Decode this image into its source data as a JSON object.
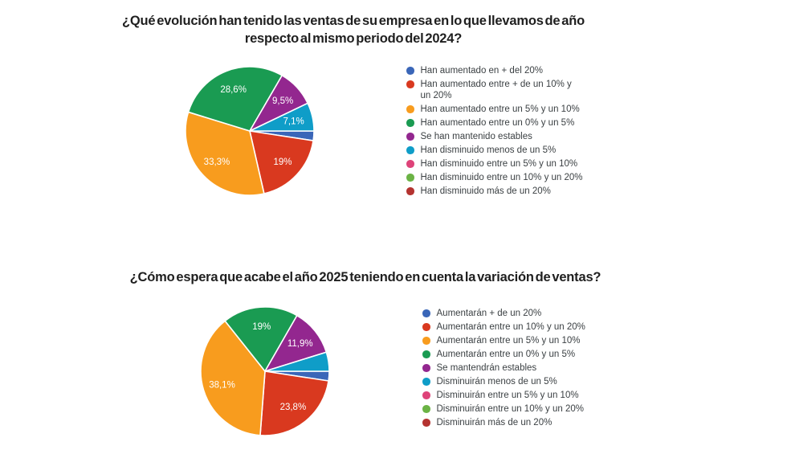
{
  "chart_data": [
    {
      "type": "pie",
      "title": "¿Qué evolución han tenido las ventas de su empresa en lo que llevamos de año respecto al mismo periodo del 2024?",
      "legend_position": "right",
      "start_angle": 90,
      "direction": "clockwise",
      "slices": [
        {
          "label": "Han aumentado en + del 20%",
          "value": 2.4,
          "display": "",
          "color": "#3A66B8"
        },
        {
          "label": "Han aumentado entre + de un 10% y un 20%",
          "value": 19.0,
          "display": "19%",
          "color": "#D9391F"
        },
        {
          "label": "Han aumentado entre un 5% y un 10%",
          "value": 33.3,
          "display": "33,3%",
          "color": "#F89C1E"
        },
        {
          "label": "Han aumentado entre un 0% y un 5%",
          "value": 28.6,
          "display": "28,6%",
          "color": "#1A9B52"
        },
        {
          "label": "Se han mantenido estables",
          "value": 9.5,
          "display": "9,5%",
          "color": "#93278F"
        },
        {
          "label": "Han disminuido menos de un 5%",
          "value": 7.1,
          "display": "7,1%",
          "color": "#0F9DC8"
        },
        {
          "label": "Han disminuido entre un 5% y un 10%",
          "value": 0,
          "display": "",
          "color": "#DE4379"
        },
        {
          "label": "Han disminuido entre un 10% y un 20%",
          "value": 0,
          "display": "",
          "color": "#6BB345"
        },
        {
          "label": "Han disminuido más de un 20%",
          "value": 0,
          "display": "",
          "color": "#B43330"
        }
      ]
    },
    {
      "type": "pie",
      "title": "¿Cómo espera que acabe el año 2025 teniendo en cuenta la variación de ventas?",
      "legend_position": "right",
      "start_angle": 90,
      "direction": "clockwise",
      "slices": [
        {
          "label": "Aumentarán + de un 20%",
          "value": 2.4,
          "display": "",
          "color": "#3A66B8"
        },
        {
          "label": "Aumentarán entre un 10% y un 20%",
          "value": 23.8,
          "display": "23,8%",
          "color": "#D9391F"
        },
        {
          "label": "Aumentarán entre un 5% y un 10%",
          "value": 38.1,
          "display": "38,1%",
          "color": "#F89C1E"
        },
        {
          "label": "Aumentarán entre un 0% y un 5%",
          "value": 19.0,
          "display": "19%",
          "color": "#1A9B52"
        },
        {
          "label": "Se mantendrán estables",
          "value": 11.9,
          "display": "11,9%",
          "color": "#93278F"
        },
        {
          "label": "Disminuirán menos de un 5%",
          "value": 4.8,
          "display": "",
          "color": "#0F9DC8"
        },
        {
          "label": "Disminuirán entre un 5% y un 10%",
          "value": 0,
          "display": "",
          "color": "#DE4379"
        },
        {
          "label": "Disminuirán entre un 10% y un 20%",
          "value": 0,
          "display": "",
          "color": "#6BB345"
        },
        {
          "label": "Disminuirán más de un 20%",
          "value": 0,
          "display": "",
          "color": "#B43330"
        }
      ]
    }
  ]
}
